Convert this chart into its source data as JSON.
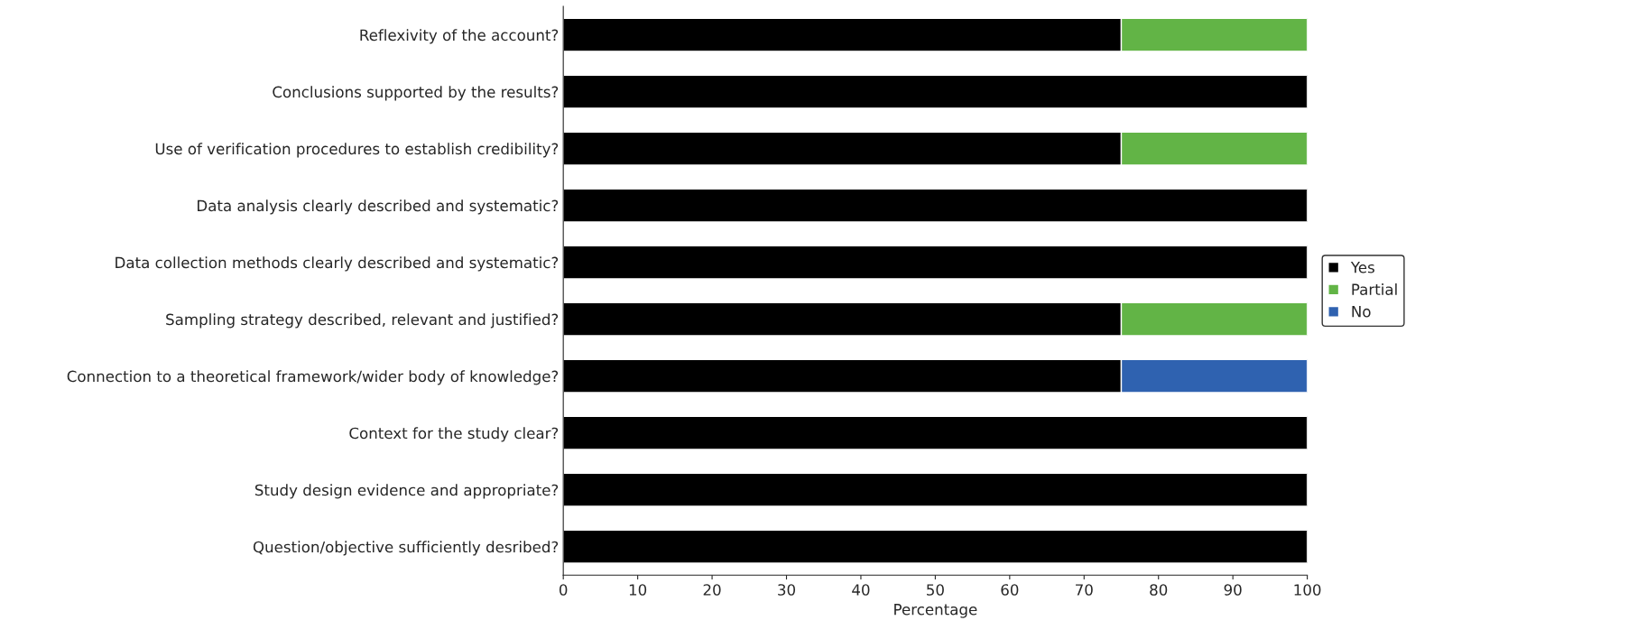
{
  "chart_data": {
    "type": "bar",
    "orientation": "horizontal",
    "stacked": true,
    "xlabel": "Percentage",
    "categories": [
      "Reflexivity of the account?",
      "Conclusions supported by the results?",
      "Use of verification procedures to establish credibility?",
      "Data analysis clearly described and systematic?",
      "Data collection methods clearly described and systematic?",
      "Sampling strategy described, relevant and justified?",
      "Connection to a theoretical framework/wider body of knowledge?",
      "Context for the study clear?",
      "Study design evidence and appropriate?",
      "Question/objective sufficiently desribed?"
    ],
    "series": [
      {
        "name": "Yes",
        "color": "#000000",
        "values": [
          75,
          100,
          75,
          100,
          100,
          75,
          75,
          100,
          100,
          100
        ]
      },
      {
        "name": "Partial",
        "color": "#62b446",
        "values": [
          25,
          null,
          25,
          null,
          null,
          25,
          null,
          null,
          null,
          null
        ]
      },
      {
        "name": "No",
        "color": "#2f62b0",
        "values": [
          null,
          null,
          null,
          null,
          null,
          null,
          25,
          null,
          null,
          null
        ]
      }
    ],
    "xlim": [
      0,
      100
    ],
    "xticks": [
      0,
      10,
      20,
      30,
      40,
      50,
      60,
      70,
      80,
      90,
      100
    ],
    "grid": false,
    "legend": "right"
  }
}
